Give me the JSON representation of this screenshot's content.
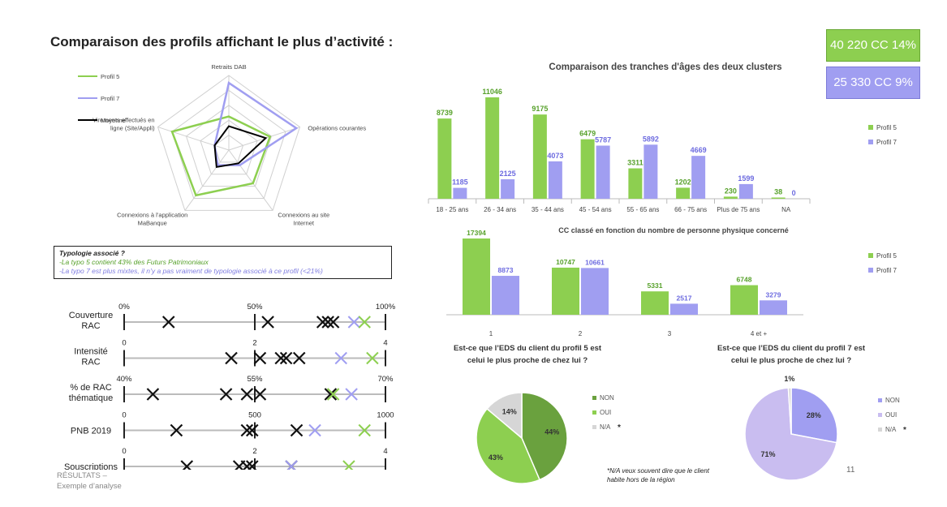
{
  "title": "Comparaison des profils affichant le plus d’activité :",
  "kpis": {
    "p5": "40 220 CC 14%",
    "p7": "25 330 CC 9%"
  },
  "colors": {
    "p5": "#8dcf50",
    "p7": "#a09ef1",
    "avg": "#000000",
    "p5_dark": "#6aa13e",
    "grey": "#d6d6d6",
    "p7_light": "#c9bdf0"
  },
  "typology": {
    "title": "Typologie associé ?",
    "line1": "-La typo 5 contient 43% des Futurs Patrimoniaux",
    "line2": "-La typo 7 est plus mixtes, il n’y a pas vraiment de typologie associé à ce profil (<21%)"
  },
  "footer": {
    "line1": "RÉSULTATS –",
    "line2": "Exemple d’analyse"
  },
  "page_number": "11",
  "na_note": {
    "line1": "*N/A veux souvent dire que le client",
    "line2": "habite hors de la région"
  },
  "chart_data": [
    {
      "type": "radar",
      "axes": [
        "Retraits DAB",
        "Opérations courantes",
        "Connexions au site Internet",
        "Connexions à l’application MaBanque",
        "Virements effectués en ligne (Site/Appli)"
      ],
      "legend": [
        "Profil 5",
        "Profil 7",
        "Moyenne"
      ],
      "series": [
        {
          "name": "Profil 5",
          "values": [
            0.45,
            0.58,
            0.55,
            0.75,
            0.8
          ]
        },
        {
          "name": "Profil 7",
          "values": [
            0.9,
            0.95,
            0.25,
            0.25,
            0.2
          ]
        },
        {
          "name": "Moyenne",
          "values": [
            0.32,
            0.52,
            0.22,
            0.28,
            0.2
          ]
        }
      ]
    },
    {
      "type": "bar",
      "title": "Comparaison des tranches d'âges des deux clusters",
      "categories": [
        "18 - 25 ans",
        "26 - 34 ans",
        "35 - 44 ans",
        "45 - 54 ans",
        "55 - 65 ans",
        "66 - 75 ans",
        "Plus de 75 ans",
        "NA"
      ],
      "series": [
        {
          "name": "Profil 5",
          "values": [
            8739,
            11046,
            9175,
            6479,
            3311,
            1202,
            230,
            38
          ]
        },
        {
          "name": "Profil 7",
          "values": [
            1185,
            2125,
            4073,
            5787,
            5892,
            4669,
            1599,
            0
          ]
        }
      ],
      "ylim": [
        0,
        11046
      ]
    },
    {
      "type": "bar",
      "title": "CC classé en fonction du nombre de personne physique concerné",
      "categories": [
        "1",
        "2",
        "3",
        "4 et +"
      ],
      "series": [
        {
          "name": "Profil 5",
          "values": [
            17394,
            10747,
            5331,
            6748
          ]
        },
        {
          "name": "Profil 7",
          "values": [
            8873,
            10661,
            2517,
            3279
          ]
        }
      ],
      "ylim": [
        0,
        17394
      ]
    },
    {
      "type": "pie",
      "title_line1": "Est-ce que l’EDS du client du profil 5 est",
      "title_line2": "celui le plus proche de chez lui ?",
      "legend": [
        "NON",
        "OUI",
        "N/A"
      ],
      "slices": [
        {
          "label": "NON",
          "value": 44,
          "text": "44%"
        },
        {
          "label": "OUI",
          "value": 43,
          "text": "43%"
        },
        {
          "label": "N/A",
          "value": 14,
          "text": "14%"
        }
      ]
    },
    {
      "type": "pie",
      "title_line1": "Est-ce que l’EDS du client du profil 7 est",
      "title_line2": "celui le plus proche de chez lui ?",
      "legend": [
        "NON",
        "OUI",
        "N/A"
      ],
      "slices": [
        {
          "label": "NON",
          "value": 28,
          "text": "28%"
        },
        {
          "label": "OUI",
          "value": 71,
          "text": "71%"
        },
        {
          "label": "N/A",
          "value": 1,
          "text": "1%"
        }
      ]
    },
    {
      "type": "scale",
      "rows": [
        {
          "label_line1": "Couverture",
          "label_line2": "RAC",
          "min_label": "0%",
          "mid_label": "50%",
          "max_label": "100%",
          "black": [
            0.17,
            0.55,
            0.76,
            0.78,
            0.8
          ],
          "p7": 0.88,
          "p5": 0.92
        },
        {
          "label_line1": "Intensité",
          "label_line2": "RAC",
          "min_label": "0",
          "mid_label": "2",
          "max_label": "4",
          "black": [
            0.41,
            0.52,
            0.6,
            0.62,
            0.67
          ],
          "p7": 0.83,
          "p5": 0.95
        },
        {
          "label_line1": "% de RAC",
          "label_line2": "thématique",
          "min_label": "40%",
          "mid_label": "55%",
          "max_label": "70%",
          "black": [
            0.11,
            0.39,
            0.47,
            0.52,
            0.79
          ],
          "p7": 0.87,
          "p5": 0.8
        },
        {
          "label_line1": "PNB 2019",
          "label_line2": "",
          "min_label": "0",
          "mid_label": "500",
          "max_label": "1000",
          "black": [
            0.2,
            0.47,
            0.49,
            0.66
          ],
          "p7": 0.73,
          "p5": 0.92
        },
        {
          "label_line1": "Souscriptions",
          "label_line2": "",
          "min_label": "0",
          "mid_label": "2",
          "max_label": "4",
          "black": [
            0.24,
            0.44,
            0.47,
            0.49,
            0.64
          ],
          "p7": 0.64,
          "p5": 0.86
        }
      ]
    }
  ]
}
